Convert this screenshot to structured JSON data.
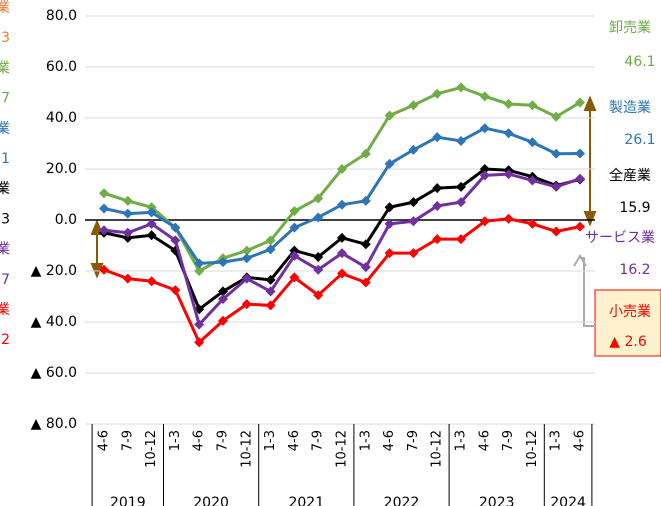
{
  "chart_data": {
    "type": "line",
    "categories": [
      "4-6",
      "7-9",
      "10-12",
      "1-3",
      "4-6",
      "7-9",
      "10-12",
      "1-3",
      "4-6",
      "7-9",
      "10-12",
      "1-3",
      "4-6",
      "7-9",
      "10-12",
      "1-3",
      "4-6",
      "7-9",
      "10-12",
      "1-3",
      "4-6"
    ],
    "years": [
      {
        "label": "2019",
        "count": 3
      },
      {
        "label": "2020",
        "count": 4
      },
      {
        "label": "2021",
        "count": 4
      },
      {
        "label": "2022",
        "count": 4
      },
      {
        "label": "2023",
        "count": 4
      },
      {
        "label": "2024",
        "count": 2
      }
    ],
    "ylim": [
      -80,
      80
    ],
    "yticks": [
      {
        "value": 80,
        "label": "80.0"
      },
      {
        "value": 60,
        "label": "60.0"
      },
      {
        "value": 40,
        "label": "40.0"
      },
      {
        "value": 20,
        "label": "20.0"
      },
      {
        "value": 0,
        "label": "0.0"
      },
      {
        "value": -20,
        "label": "▲ 20.0"
      },
      {
        "value": -40,
        "label": "▲ 40.0"
      },
      {
        "value": -60,
        "label": "▲ 60.0"
      },
      {
        "value": -80,
        "label": "▲ 80.0"
      }
    ],
    "grid": true,
    "series": [
      {
        "name": "卸売業",
        "color": "#70ad47",
        "value_label": "46.1",
        "values": [
          10.5,
          7.5,
          5,
          -3,
          -20,
          -15,
          -12,
          -8,
          3.5,
          8.5,
          20,
          26,
          41,
          45,
          49.5,
          52,
          48.5,
          45.5,
          45,
          40.5,
          46.1
        ]
      },
      {
        "name": "製造業",
        "color": "#2e75b6",
        "value_label": "26.1",
        "values": [
          4.5,
          2.5,
          3,
          -3,
          -17,
          -16.5,
          -15,
          -11.5,
          -3,
          1,
          6,
          7.5,
          22,
          27.5,
          32.5,
          31,
          36,
          34,
          30.5,
          26,
          26.1
        ]
      },
      {
        "name": "全産業",
        "color": "#000000",
        "value_label": "15.9",
        "values": [
          -5,
          -7,
          -6,
          -12,
          -35,
          -28,
          -22.5,
          -23.5,
          -12,
          -14.5,
          -7,
          -9.5,
          5,
          7,
          12.5,
          13,
          20,
          19.5,
          17,
          13.5,
          15.9
        ]
      },
      {
        "name": "サービス業",
        "color": "#7030a0",
        "value_label": "16.2",
        "values": [
          -4,
          -5,
          -1.5,
          -8,
          -41,
          -31,
          -23,
          -28,
          -14,
          -19.5,
          -13,
          -18.5,
          -1.5,
          -0.5,
          5.5,
          7,
          17.5,
          18,
          15.5,
          13,
          16.2
        ]
      },
      {
        "name": "小売業",
        "color": "#ff0000",
        "value_label": "▲ 2.6",
        "values": [
          -19.5,
          -23,
          -24,
          -27.5,
          -48,
          -39.5,
          -33,
          -33.5,
          -22.5,
          -29.5,
          -21,
          -24.5,
          -13,
          -13,
          -7.5,
          -7.5,
          -0.5,
          0.5,
          -1.5,
          -4.5,
          -2.6
        ]
      }
    ],
    "left_fragments": [
      {
        "text": "業",
        "color": "#ed7d31"
      },
      {
        "text": "3",
        "color": "#ed7d31"
      },
      {
        "text": "業",
        "color": "#70ad47"
      },
      {
        "text": "7",
        "color": "#70ad47"
      },
      {
        "text": "業",
        "color": "#2e75b6"
      },
      {
        "text": "1",
        "color": "#2e75b6"
      },
      {
        "text": "業",
        "color": "#000000"
      },
      {
        "text": "3",
        "color": "#000000"
      },
      {
        "text": "業",
        "color": "#7030a0"
      },
      {
        "text": "7",
        "color": "#7030a0"
      },
      {
        "text": "業",
        "color": "#ff0000"
      },
      {
        "text": "2",
        "color": "#ff0000"
      }
    ]
  }
}
